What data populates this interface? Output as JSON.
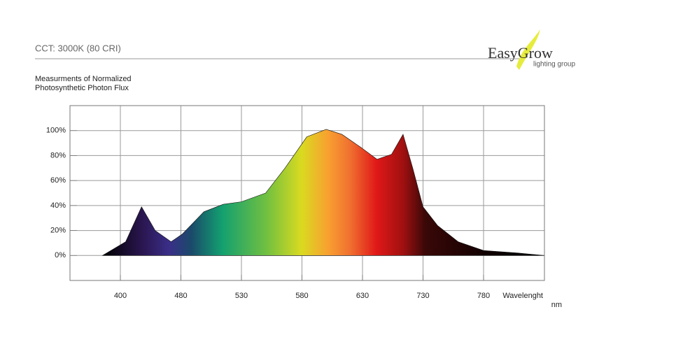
{
  "chart_data": {
    "type": "area",
    "title": "CCT: 3000K (80 CRI)",
    "subtitle": [
      "Measurments of Normalized",
      "Photosynthetic Photon Flux"
    ],
    "x_label": [
      "Wavelenght",
      "nm"
    ],
    "x": [
      377,
      407,
      428,
      446,
      467,
      481,
      499,
      515,
      530,
      550,
      566,
      584,
      600,
      613,
      628,
      654,
      678,
      697,
      713,
      730,
      742,
      759,
      780,
      808,
      830
    ],
    "values": [
      0,
      11,
      39,
      20,
      11,
      17,
      35,
      41,
      43,
      50,
      70,
      95,
      101,
      97,
      87,
      77,
      81,
      97,
      70,
      39,
      24,
      11,
      4,
      2,
      0
    ],
    "xlim": [
      335,
      830
    ],
    "xticks": [
      400,
      480,
      530,
      580,
      630,
      730,
      780
    ],
    "ylim": [
      -20,
      120
    ],
    "yticks": [
      {
        "value": 0,
        "label": "0%"
      },
      {
        "value": 20,
        "label": "20%"
      },
      {
        "value": 40,
        "label": "40%"
      },
      {
        "value": 60,
        "label": "60%"
      },
      {
        "value": 80,
        "label": "80%"
      },
      {
        "value": 100,
        "label": "100%"
      }
    ],
    "grid": true
  },
  "logo": {
    "name": "EasyGrow",
    "tagline": "lighting group"
  }
}
